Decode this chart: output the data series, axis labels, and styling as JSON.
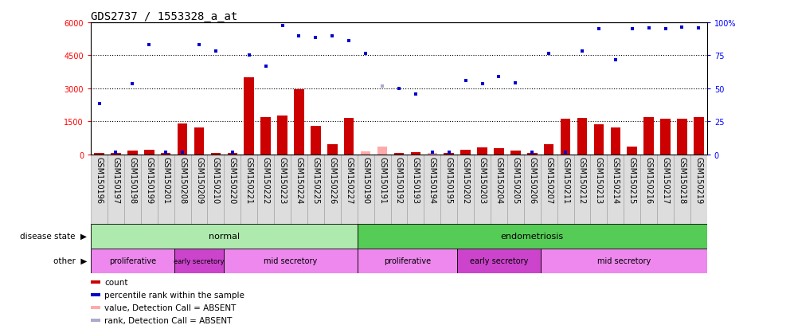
{
  "title": "GDS2737 / 1553328_a_at",
  "samples": [
    "GSM150196",
    "GSM150197",
    "GSM150198",
    "GSM150199",
    "GSM150201",
    "GSM150208",
    "GSM150209",
    "GSM150210",
    "GSM150220",
    "GSM150221",
    "GSM150222",
    "GSM150223",
    "GSM150224",
    "GSM150225",
    "GSM150226",
    "GSM150227",
    "GSM150190",
    "GSM150191",
    "GSM150192",
    "GSM150193",
    "GSM150194",
    "GSM150195",
    "GSM150202",
    "GSM150203",
    "GSM150204",
    "GSM150205",
    "GSM150206",
    "GSM150207",
    "GSM150211",
    "GSM150212",
    "GSM150213",
    "GSM150214",
    "GSM150215",
    "GSM150216",
    "GSM150217",
    "GSM150218",
    "GSM150219"
  ],
  "count_values": [
    60,
    60,
    180,
    220,
    60,
    1400,
    1200,
    60,
    60,
    3500,
    1700,
    1750,
    2950,
    1300,
    450,
    1650,
    120,
    350,
    60,
    100,
    60,
    60,
    200,
    320,
    280,
    180,
    60,
    450,
    1600,
    1650,
    1350,
    1200,
    350,
    1700,
    1600,
    1600,
    1700
  ],
  "count_absent": [
    false,
    false,
    false,
    false,
    false,
    false,
    false,
    false,
    false,
    false,
    false,
    false,
    false,
    false,
    false,
    false,
    true,
    true,
    false,
    false,
    true,
    false,
    false,
    false,
    false,
    false,
    false,
    false,
    false,
    false,
    false,
    false,
    false,
    false,
    false,
    false,
    false
  ],
  "rank_values": [
    2300,
    100,
    3200,
    5000,
    100,
    100,
    5000,
    4700,
    100,
    4500,
    4000,
    5850,
    5400,
    5300,
    5400,
    5150,
    4600,
    3100,
    3000,
    2750,
    100,
    100,
    3350,
    3200,
    3550,
    3250,
    100,
    4600,
    100,
    4700,
    5700,
    4300,
    5700,
    5750,
    5700,
    5800,
    5750
  ],
  "rank_absent": [
    false,
    false,
    false,
    false,
    false,
    false,
    false,
    false,
    false,
    false,
    false,
    false,
    false,
    false,
    false,
    false,
    false,
    true,
    false,
    false,
    false,
    false,
    false,
    false,
    false,
    false,
    false,
    false,
    false,
    false,
    false,
    false,
    false,
    false,
    false,
    false,
    false
  ],
  "ylim_left": [
    0,
    6000
  ],
  "ylim_right": [
    0,
    100
  ],
  "yticks_left": [
    0,
    1500,
    3000,
    4500,
    6000
  ],
  "yticks_right": [
    0,
    25,
    50,
    75,
    100
  ],
  "disease_state_groups": [
    {
      "label": "normal",
      "start": 0,
      "end": 16,
      "color": "#aeeaae"
    },
    {
      "label": "endometriosis",
      "start": 16,
      "end": 37,
      "color": "#55cc55"
    }
  ],
  "other_groups": [
    {
      "label": "proliferative",
      "start": 0,
      "end": 5,
      "color": "#ee88ee"
    },
    {
      "label": "early secretory",
      "start": 5,
      "end": 8,
      "color": "#cc44cc"
    },
    {
      "label": "mid secretory",
      "start": 8,
      "end": 16,
      "color": "#ee88ee"
    },
    {
      "label": "proliferative",
      "start": 16,
      "end": 22,
      "color": "#ee88ee"
    },
    {
      "label": "early secretory",
      "start": 22,
      "end": 27,
      "color": "#cc44cc"
    },
    {
      "label": "mid secretory",
      "start": 27,
      "end": 37,
      "color": "#ee88ee"
    }
  ],
  "bar_color_normal": "#cc0000",
  "bar_color_absent": "#ffaaaa",
  "rank_color_normal": "#0000cc",
  "rank_color_absent": "#aaaacc",
  "legend_items": [
    {
      "label": "count",
      "color": "#cc0000"
    },
    {
      "label": "percentile rank within the sample",
      "color": "#0000cc"
    },
    {
      "label": "value, Detection Call = ABSENT",
      "color": "#ffaaaa"
    },
    {
      "label": "rank, Detection Call = ABSENT",
      "color": "#aaaacc"
    }
  ],
  "dotted_lines": [
    1500,
    3000,
    4500
  ],
  "tick_fontsize": 7,
  "label_fontsize": 8,
  "bar_width": 0.6,
  "xlabel_bg": "#dddddd"
}
